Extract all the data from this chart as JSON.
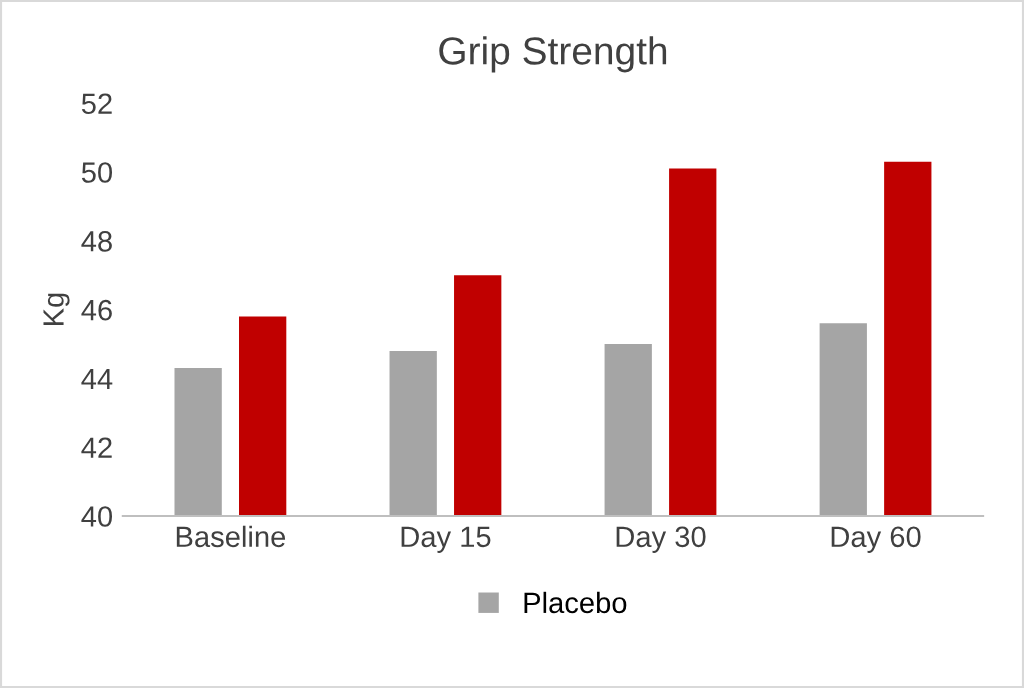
{
  "chart_data": {
    "type": "bar",
    "title": "Grip Strength",
    "ylabel": "Kg",
    "categories": [
      "Baseline",
      "Day 15",
      "Day 30",
      "Day 60"
    ],
    "series": [
      {
        "name": "Placebo",
        "color": "#a5a5a5",
        "values": [
          44.3,
          44.8,
          45.0,
          45.6
        ]
      },
      {
        "color": "#c00000",
        "values": [
          45.8,
          47.0,
          50.1,
          50.3
        ]
      }
    ],
    "ylim": [
      40,
      52
    ],
    "yticks": [
      40,
      42,
      44,
      46,
      48,
      50,
      52
    ],
    "grid": false,
    "legend": "bottom"
  }
}
